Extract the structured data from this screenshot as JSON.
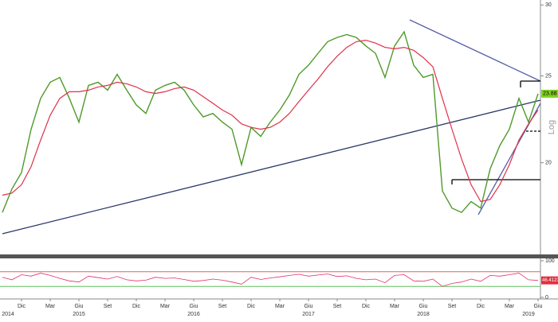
{
  "chart_data": [
    {
      "type": "line",
      "log_scale": true,
      "scale_label": "Log",
      "grid": false,
      "x": [
        "2014-10",
        "2014-11",
        "2014-12",
        "2015-01",
        "2015-02",
        "2015-03",
        "2015-04",
        "2015-05",
        "2015-06",
        "2015-07",
        "2015-08",
        "2015-09",
        "2015-10",
        "2015-11",
        "2015-12",
        "2016-01",
        "2016-02",
        "2016-03",
        "2016-04",
        "2016-05",
        "2016-06",
        "2016-07",
        "2016-08",
        "2016-09",
        "2016-10",
        "2016-11",
        "2016-12",
        "2017-01",
        "2017-02",
        "2017-03",
        "2017-04",
        "2017-05",
        "2017-06",
        "2017-07",
        "2017-08",
        "2017-09",
        "2017-10",
        "2017-11",
        "2017-12",
        "2018-01",
        "2018-02",
        "2018-03",
        "2018-04",
        "2018-05",
        "2018-06",
        "2018-07",
        "2018-08",
        "2018-09",
        "2018-10",
        "2018-11",
        "2018-12",
        "2019-01",
        "2019-02",
        "2019-03",
        "2019-04",
        "2019-05",
        "2019-06"
      ],
      "xlim": [
        "2014-10",
        "2019-06"
      ],
      "series": [
        {
          "color": "#4e9a2a",
          "values": [
            17.6,
            18.7,
            19.5,
            21.8,
            23.6,
            24.6,
            24.9,
            23.6,
            22.2,
            24.4,
            24.6,
            24.1,
            25.1,
            24.1,
            23.2,
            22.7,
            24.1,
            24.4,
            24.6,
            24.1,
            23.2,
            22.5,
            22.7,
            22.2,
            21.8,
            19.9,
            21.9,
            21.4,
            22.2,
            22.9,
            23.8,
            25.1,
            25.7,
            26.5,
            27.3,
            27.6,
            27.8,
            27.6,
            27.0,
            26.5,
            24.9,
            27.0,
            28.0,
            25.7,
            24.9,
            25.1,
            18.6,
            17.8,
            17.6,
            18.1,
            17.8,
            19.7,
            20.9,
            21.8,
            23.6,
            22.2,
            23.88
          ]
        },
        {
          "color": "#e0304a",
          "values": [
            18.4,
            18.5,
            18.9,
            19.8,
            21.2,
            22.6,
            23.6,
            24.0,
            24.0,
            24.1,
            24.3,
            24.4,
            24.6,
            24.5,
            24.3,
            24.0,
            23.9,
            24.0,
            24.2,
            24.3,
            24.1,
            23.7,
            23.3,
            22.9,
            22.6,
            22.1,
            21.9,
            21.8,
            21.9,
            22.2,
            22.7,
            23.4,
            24.1,
            24.8,
            25.6,
            26.3,
            26.9,
            27.3,
            27.4,
            27.2,
            26.9,
            26.8,
            26.9,
            26.7,
            26.2,
            25.6,
            23.6,
            21.8,
            20.2,
            18.9,
            18.1,
            18.2,
            18.9,
            19.9,
            21.2,
            22.1,
            22.9
          ]
        }
      ],
      "ylim": [
        15.8,
        30.2
      ],
      "yticks": [
        30,
        25,
        20
      ],
      "last_value": 23.88,
      "xticks": [
        {
          "value": "2014-12",
          "label": "Dic"
        },
        {
          "value": "2015-03",
          "label": "Mar"
        },
        {
          "value": "2015-06",
          "label": "Giu"
        },
        {
          "value": "2015-09",
          "label": "Set"
        },
        {
          "value": "2015-12",
          "label": "Dic"
        },
        {
          "value": "2016-03",
          "label": "Mar"
        },
        {
          "value": "2016-06",
          "label": "Giu"
        },
        {
          "value": "2016-09",
          "label": "Set"
        },
        {
          "value": "2016-12",
          "label": "Dic"
        },
        {
          "value": "2017-03",
          "label": "Mar"
        },
        {
          "value": "2017-06",
          "label": "Giu"
        },
        {
          "value": "2017-09",
          "label": "Set"
        },
        {
          "value": "2017-12",
          "label": "Dic"
        },
        {
          "value": "2018-03",
          "label": "Mar"
        },
        {
          "value": "2018-06",
          "label": "Giu"
        },
        {
          "value": "2018-09",
          "label": "Set"
        },
        {
          "value": "2018-12",
          "label": "Dic"
        },
        {
          "value": "2019-03",
          "label": "Mar"
        },
        {
          "value": "2019-06",
          "label": "Giu"
        }
      ],
      "year_ticks": [
        {
          "value": "2014-10",
          "label": "2014"
        },
        {
          "value": "2015-06",
          "label": "2015"
        },
        {
          "value": "2016-06",
          "label": "2016"
        },
        {
          "value": "2017-06",
          "label": "2017"
        },
        {
          "value": "2018-06",
          "label": "2018"
        },
        {
          "value": "2019-05",
          "label": "2019"
        }
      ]
    },
    {
      "type": "line",
      "color": "#e0306a",
      "values": [
        55,
        48,
        62,
        58,
        66,
        60,
        52,
        45,
        42,
        58,
        54,
        50,
        57,
        48,
        45,
        47,
        55,
        52,
        53,
        49,
        44,
        46,
        50,
        47,
        42,
        36,
        55,
        49,
        53,
        56,
        60,
        63,
        58,
        61,
        64,
        57,
        59,
        52,
        48,
        50,
        40,
        60,
        62,
        45,
        44,
        50,
        30,
        38,
        42,
        50,
        44,
        60,
        58,
        62,
        66,
        48,
        46.4123
      ],
      "ylim": [
        0,
        100
      ],
      "yticks": [
        100,
        0
      ],
      "levels": [
        {
          "value": 70,
          "color": "#e06060"
        },
        {
          "value": 30,
          "color": "#60c060"
        }
      ],
      "last_value": 46.4123
    }
  ]
}
